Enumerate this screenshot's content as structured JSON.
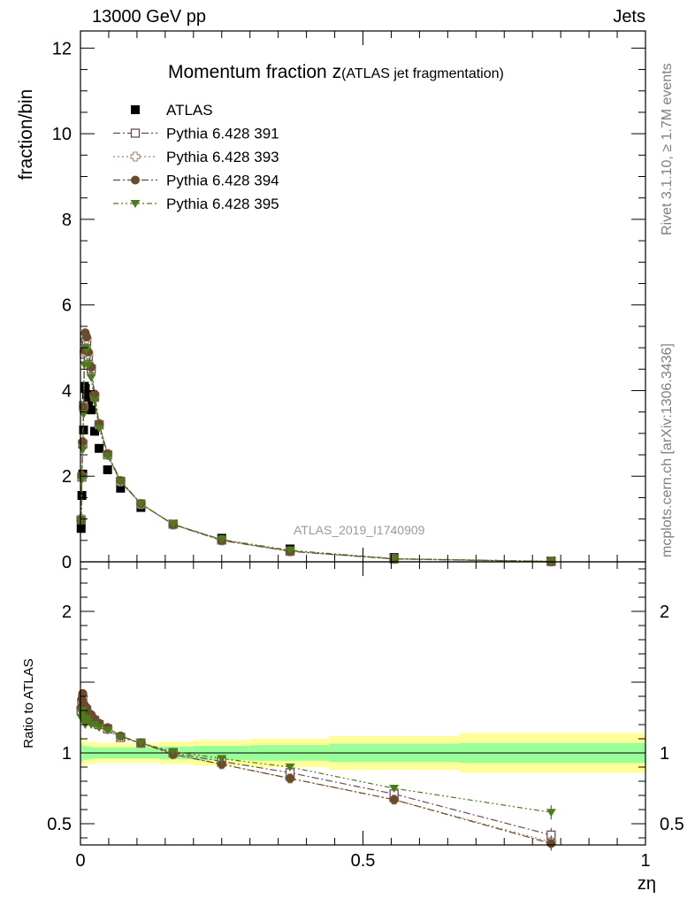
{
  "header": {
    "left": "13000 GeV pp",
    "right": "Jets"
  },
  "side": {
    "rivet": "Rivet 3.1.10, ≥ 1.7M events",
    "mcplots": "mcplots.cern.ch [arXiv:1306.3436]"
  },
  "chart_data": [
    {
      "type": "scatter",
      "panel": "main",
      "title_main": "Momentum fraction z",
      "title_sub": "(ATLAS jet fragmentation)",
      "ylabel": "fraction/bin",
      "watermark": "ATLAS_2019_I1740909",
      "xlim": [
        0,
        1
      ],
      "ylim": [
        0,
        12.4
      ],
      "yticks": [
        0,
        2,
        4,
        6,
        8,
        10,
        12
      ],
      "ytick_labels": [
        "0",
        "2",
        "4",
        "6",
        "8",
        "10",
        "12"
      ],
      "legend_position": "top-left",
      "series": [
        {
          "name": "ATLAS",
          "color": "#000000",
          "marker": "filled-square",
          "line": "none",
          "x": [
            0.0012,
            0.0025,
            0.004,
            0.0055,
            0.007,
            0.0085,
            0.011,
            0.014,
            0.019,
            0.025,
            0.033,
            0.048,
            0.071,
            0.107,
            0.164,
            0.25,
            0.371,
            0.555,
            0.833
          ],
          "values": [
            0.78,
            1.55,
            2.05,
            3.08,
            4.1,
            4.05,
            3.9,
            3.7,
            3.55,
            3.05,
            2.65,
            2.15,
            1.72,
            1.27,
            0.88,
            0.55,
            0.3,
            0.1,
            0.02
          ]
        },
        {
          "name": "Pythia 6.428 391",
          "color": "#6b4b5e",
          "marker": "open-square",
          "line": "dash-dot",
          "x": [
            0.0012,
            0.0025,
            0.004,
            0.0055,
            0.007,
            0.0085,
            0.011,
            0.014,
            0.019,
            0.025,
            0.033,
            0.048,
            0.071,
            0.107,
            0.164,
            0.25,
            0.371,
            0.555,
            0.833
          ],
          "values": [
            0.98,
            1.98,
            2.75,
            3.65,
            4.85,
            5.2,
            5.15,
            4.8,
            4.5,
            3.85,
            3.2,
            2.5,
            1.88,
            1.35,
            0.88,
            0.51,
            0.25,
            0.07,
            0.008
          ]
        },
        {
          "name": "Pythia 6.428 393",
          "color": "#a08a64",
          "marker": "open-cross",
          "line": "dotted",
          "x": [
            0.0012,
            0.0025,
            0.004,
            0.0055,
            0.007,
            0.0085,
            0.011,
            0.014,
            0.019,
            0.025,
            0.033,
            0.048,
            0.071,
            0.107,
            0.164,
            0.25,
            0.371,
            0.555,
            0.833
          ],
          "values": [
            1.0,
            2.0,
            2.8,
            3.62,
            4.9,
            5.28,
            5.2,
            4.85,
            4.55,
            3.9,
            3.22,
            2.52,
            1.88,
            1.35,
            0.87,
            0.5,
            0.245,
            0.067,
            0.007
          ]
        },
        {
          "name": "Pythia 6.428 394",
          "color": "#6b4a2e",
          "marker": "filled-circle",
          "line": "dash-dot",
          "x": [
            0.0012,
            0.0025,
            0.004,
            0.0055,
            0.007,
            0.0085,
            0.011,
            0.014,
            0.019,
            0.025,
            0.033,
            0.048,
            0.071,
            0.107,
            0.164,
            0.25,
            0.371,
            0.555,
            0.833
          ],
          "values": [
            0.98,
            2.0,
            2.8,
            3.62,
            4.95,
            5.35,
            5.25,
            4.9,
            4.55,
            3.92,
            3.22,
            2.52,
            1.9,
            1.36,
            0.87,
            0.5,
            0.245,
            0.067,
            0.007
          ]
        },
        {
          "name": "Pythia 6.428 395",
          "color": "#4d7a1a",
          "marker": "filled-triangle-down",
          "line": "dash-dot-dot",
          "x": [
            0.0012,
            0.0025,
            0.004,
            0.0055,
            0.007,
            0.0085,
            0.011,
            0.014,
            0.019,
            0.025,
            0.033,
            0.048,
            0.071,
            0.107,
            0.164,
            0.25,
            0.371,
            0.555,
            0.833
          ],
          "values": [
            0.95,
            1.92,
            2.62,
            3.45,
            4.6,
            5.0,
            4.95,
            4.6,
            4.3,
            3.75,
            3.12,
            2.47,
            1.87,
            1.35,
            0.88,
            0.52,
            0.27,
            0.075,
            0.012
          ]
        }
      ]
    },
    {
      "type": "scatter",
      "panel": "ratio",
      "ylabel": "Ratio to ATLAS",
      "xlabel": "zη",
      "xlim": [
        0,
        1
      ],
      "ylim": [
        0.35,
        2.35
      ],
      "xticks": [
        0,
        0.5,
        1
      ],
      "xtick_labels": [
        "0",
        "0.5",
        "1"
      ],
      "yticks": [
        0.5,
        1,
        2
      ],
      "ytick_labels": [
        "0.5",
        "1",
        "2"
      ],
      "bands": {
        "edges": [
          0,
          0.0025,
          0.005,
          0.01,
          0.02,
          0.03,
          0.04,
          0.06,
          0.09,
          0.14,
          0.2,
          0.3,
          0.44,
          0.67,
          1.0
        ],
        "green_halfwidth": [
          0.07,
          0.06,
          0.05,
          0.045,
          0.04,
          0.04,
          0.04,
          0.04,
          0.04,
          0.045,
          0.05,
          0.055,
          0.065,
          0.07
        ],
        "yellow_halfwidth": [
          0.12,
          0.1,
          0.09,
          0.08,
          0.075,
          0.07,
          0.07,
          0.07,
          0.07,
          0.08,
          0.09,
          0.1,
          0.12,
          0.14
        ],
        "green_color": "#99ff99",
        "yellow_color": "#ffff99"
      },
      "series": [
        {
          "name": "Pythia 6.428 391",
          "color": "#6b4b5e",
          "marker": "open-square",
          "line": "dash-dot",
          "x": [
            0.0012,
            0.0025,
            0.004,
            0.0055,
            0.007,
            0.0085,
            0.011,
            0.014,
            0.019,
            0.025,
            0.033,
            0.048,
            0.071,
            0.107,
            0.164,
            0.25,
            0.371,
            0.555,
            0.833
          ],
          "values": [
            1.3,
            1.35,
            1.38,
            1.32,
            1.3,
            1.28,
            1.3,
            1.27,
            1.25,
            1.23,
            1.2,
            1.17,
            1.11,
            1.07,
            1.0,
            0.94,
            0.86,
            0.71,
            0.42
          ]
        },
        {
          "name": "Pythia 6.428 393",
          "color": "#a08a64",
          "marker": "open-cross",
          "line": "dotted",
          "x": [
            0.0012,
            0.0025,
            0.004,
            0.0055,
            0.007,
            0.0085,
            0.011,
            0.014,
            0.019,
            0.025,
            0.033,
            0.048,
            0.071,
            0.107,
            0.164,
            0.25,
            0.371,
            0.555,
            0.833
          ],
          "values": [
            1.31,
            1.37,
            1.4,
            1.34,
            1.32,
            1.3,
            1.3,
            1.27,
            1.25,
            1.23,
            1.2,
            1.17,
            1.11,
            1.07,
            0.99,
            0.92,
            0.82,
            0.67,
            0.37
          ]
        },
        {
          "name": "Pythia 6.428 394",
          "color": "#6b4a2e",
          "marker": "filled-circle",
          "line": "dash-dot",
          "x": [
            0.0012,
            0.0025,
            0.004,
            0.0055,
            0.007,
            0.0085,
            0.011,
            0.014,
            0.019,
            0.025,
            0.033,
            0.048,
            0.071,
            0.107,
            0.164,
            0.25,
            0.371,
            0.555,
            0.833
          ],
          "values": [
            1.32,
            1.38,
            1.42,
            1.35,
            1.33,
            1.3,
            1.32,
            1.28,
            1.27,
            1.24,
            1.21,
            1.18,
            1.12,
            1.07,
            0.99,
            0.92,
            0.82,
            0.67,
            0.36
          ]
        },
        {
          "name": "Pythia 6.428 395",
          "color": "#4d7a1a",
          "marker": "filled-triangle-down",
          "line": "dash-dot-dot",
          "x": [
            0.0012,
            0.0025,
            0.004,
            0.0055,
            0.007,
            0.0085,
            0.011,
            0.014,
            0.019,
            0.025,
            0.033,
            0.048,
            0.071,
            0.107,
            0.164,
            0.25,
            0.371,
            0.555,
            0.833
          ],
          "values": [
            1.25,
            1.28,
            1.3,
            1.25,
            1.22,
            1.2,
            1.24,
            1.22,
            1.2,
            1.2,
            1.18,
            1.16,
            1.11,
            1.07,
            1.01,
            0.96,
            0.9,
            0.75,
            0.58
          ]
        }
      ]
    }
  ]
}
